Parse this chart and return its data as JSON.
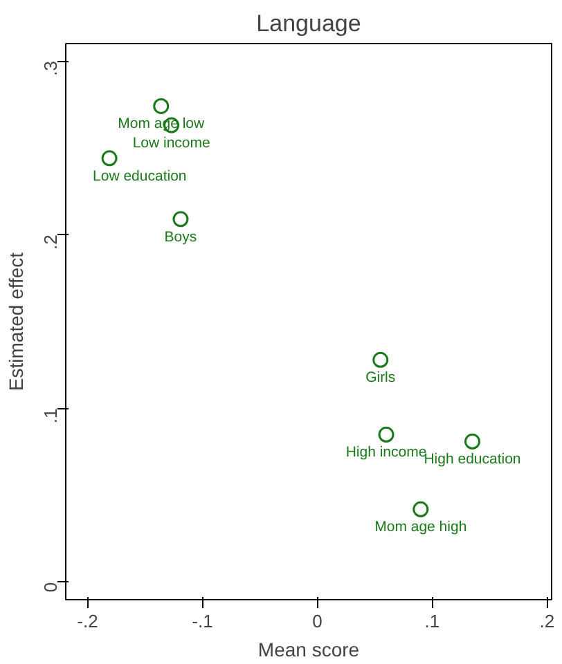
{
  "chart_data": {
    "type": "scatter",
    "title": "Language",
    "xlabel": "Mean score",
    "ylabel": "Estimated effect",
    "x": [
      -0.136,
      -0.127,
      -0.181,
      -0.119,
      0.055,
      0.06,
      0.135,
      0.09
    ],
    "values": [
      0.274,
      0.263,
      0.244,
      0.209,
      0.128,
      0.085,
      0.081,
      0.042
    ],
    "color": "#1a7a1a",
    "marker": "circle",
    "grid": false,
    "xlim": [
      -0.219,
      0.204
    ],
    "ylim": [
      -0.01,
      0.31
    ],
    "xticks": [
      {
        "value": -0.2,
        "label": "-.2"
      },
      {
        "value": -0.1,
        "label": "-.1"
      },
      0,
      {
        "value": 0.1,
        "label": ".1"
      },
      {
        "value": 0.2,
        "label": ".2"
      }
    ],
    "yticks": [
      0,
      {
        "value": 0.1,
        "label": ".1"
      },
      {
        "value": 0.2,
        "label": ".2"
      },
      {
        "value": 0.3,
        "label": ".3"
      }
    ],
    "annotations": [
      {
        "text": "Mom age low",
        "x": -0.136,
        "y": 0.274
      },
      {
        "text": "Low income",
        "x": -0.127,
        "y": 0.263
      },
      {
        "text": "Low education",
        "x": -0.181,
        "y": 0.244
      },
      {
        "text": "Boys",
        "x": -0.119,
        "y": 0.209
      },
      {
        "text": "Girls",
        "x": 0.055,
        "y": 0.128
      },
      {
        "text": "High income",
        "x": 0.06,
        "y": 0.085
      },
      {
        "text": "High education",
        "x": 0.135,
        "y": 0.081
      },
      {
        "text": "Mom age high",
        "x": 0.09,
        "y": 0.042
      }
    ]
  }
}
